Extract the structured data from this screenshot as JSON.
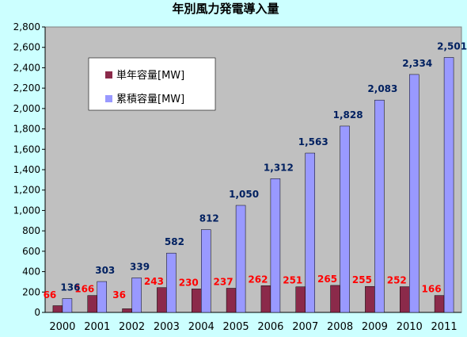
{
  "chart_data": {
    "type": "bar",
    "title": "年別風力発電導入量",
    "categories": [
      "2000",
      "2001",
      "2002",
      "2003",
      "2004",
      "2005",
      "2006",
      "2007",
      "2008",
      "2009",
      "2010",
      "2011"
    ],
    "series": [
      {
        "name": "単年容量[MW]",
        "color": "#8b2a4a",
        "label_color": "#ff0000",
        "values": [
          66,
          166,
          36,
          243,
          230,
          237,
          262,
          251,
          265,
          255,
          252,
          166
        ],
        "labels": [
          "66",
          "166",
          "36",
          "243",
          "230",
          "237",
          "262",
          "251",
          "265",
          "255",
          "252",
          "166"
        ]
      },
      {
        "name": "累積容量[MW]",
        "color": "#9999ff",
        "label_color": "#002060",
        "values": [
          136,
          303,
          339,
          582,
          812,
          1050,
          1312,
          1563,
          1828,
          2083,
          2334,
          2501
        ],
        "labels": [
          "136",
          "303",
          "339",
          "582",
          "812",
          "1,050",
          "1,312",
          "1,563",
          "1,828",
          "2,083",
          "2,334",
          "2,501"
        ]
      }
    ],
    "ylim": [
      0,
      2800
    ],
    "yticks": [
      0,
      200,
      400,
      600,
      800,
      1000,
      1200,
      1400,
      1600,
      1800,
      2000,
      2200,
      2400,
      2600,
      2800
    ],
    "ytick_labels": [
      "0",
      "200",
      "400",
      "600",
      "800",
      "1,000",
      "1,200",
      "1,400",
      "1,600",
      "1,800",
      "2,000",
      "2,200",
      "2,400",
      "2,600",
      "2,800"
    ],
    "grid": false,
    "legend_position": "top-left",
    "plot_background": "#c0c0c0"
  }
}
